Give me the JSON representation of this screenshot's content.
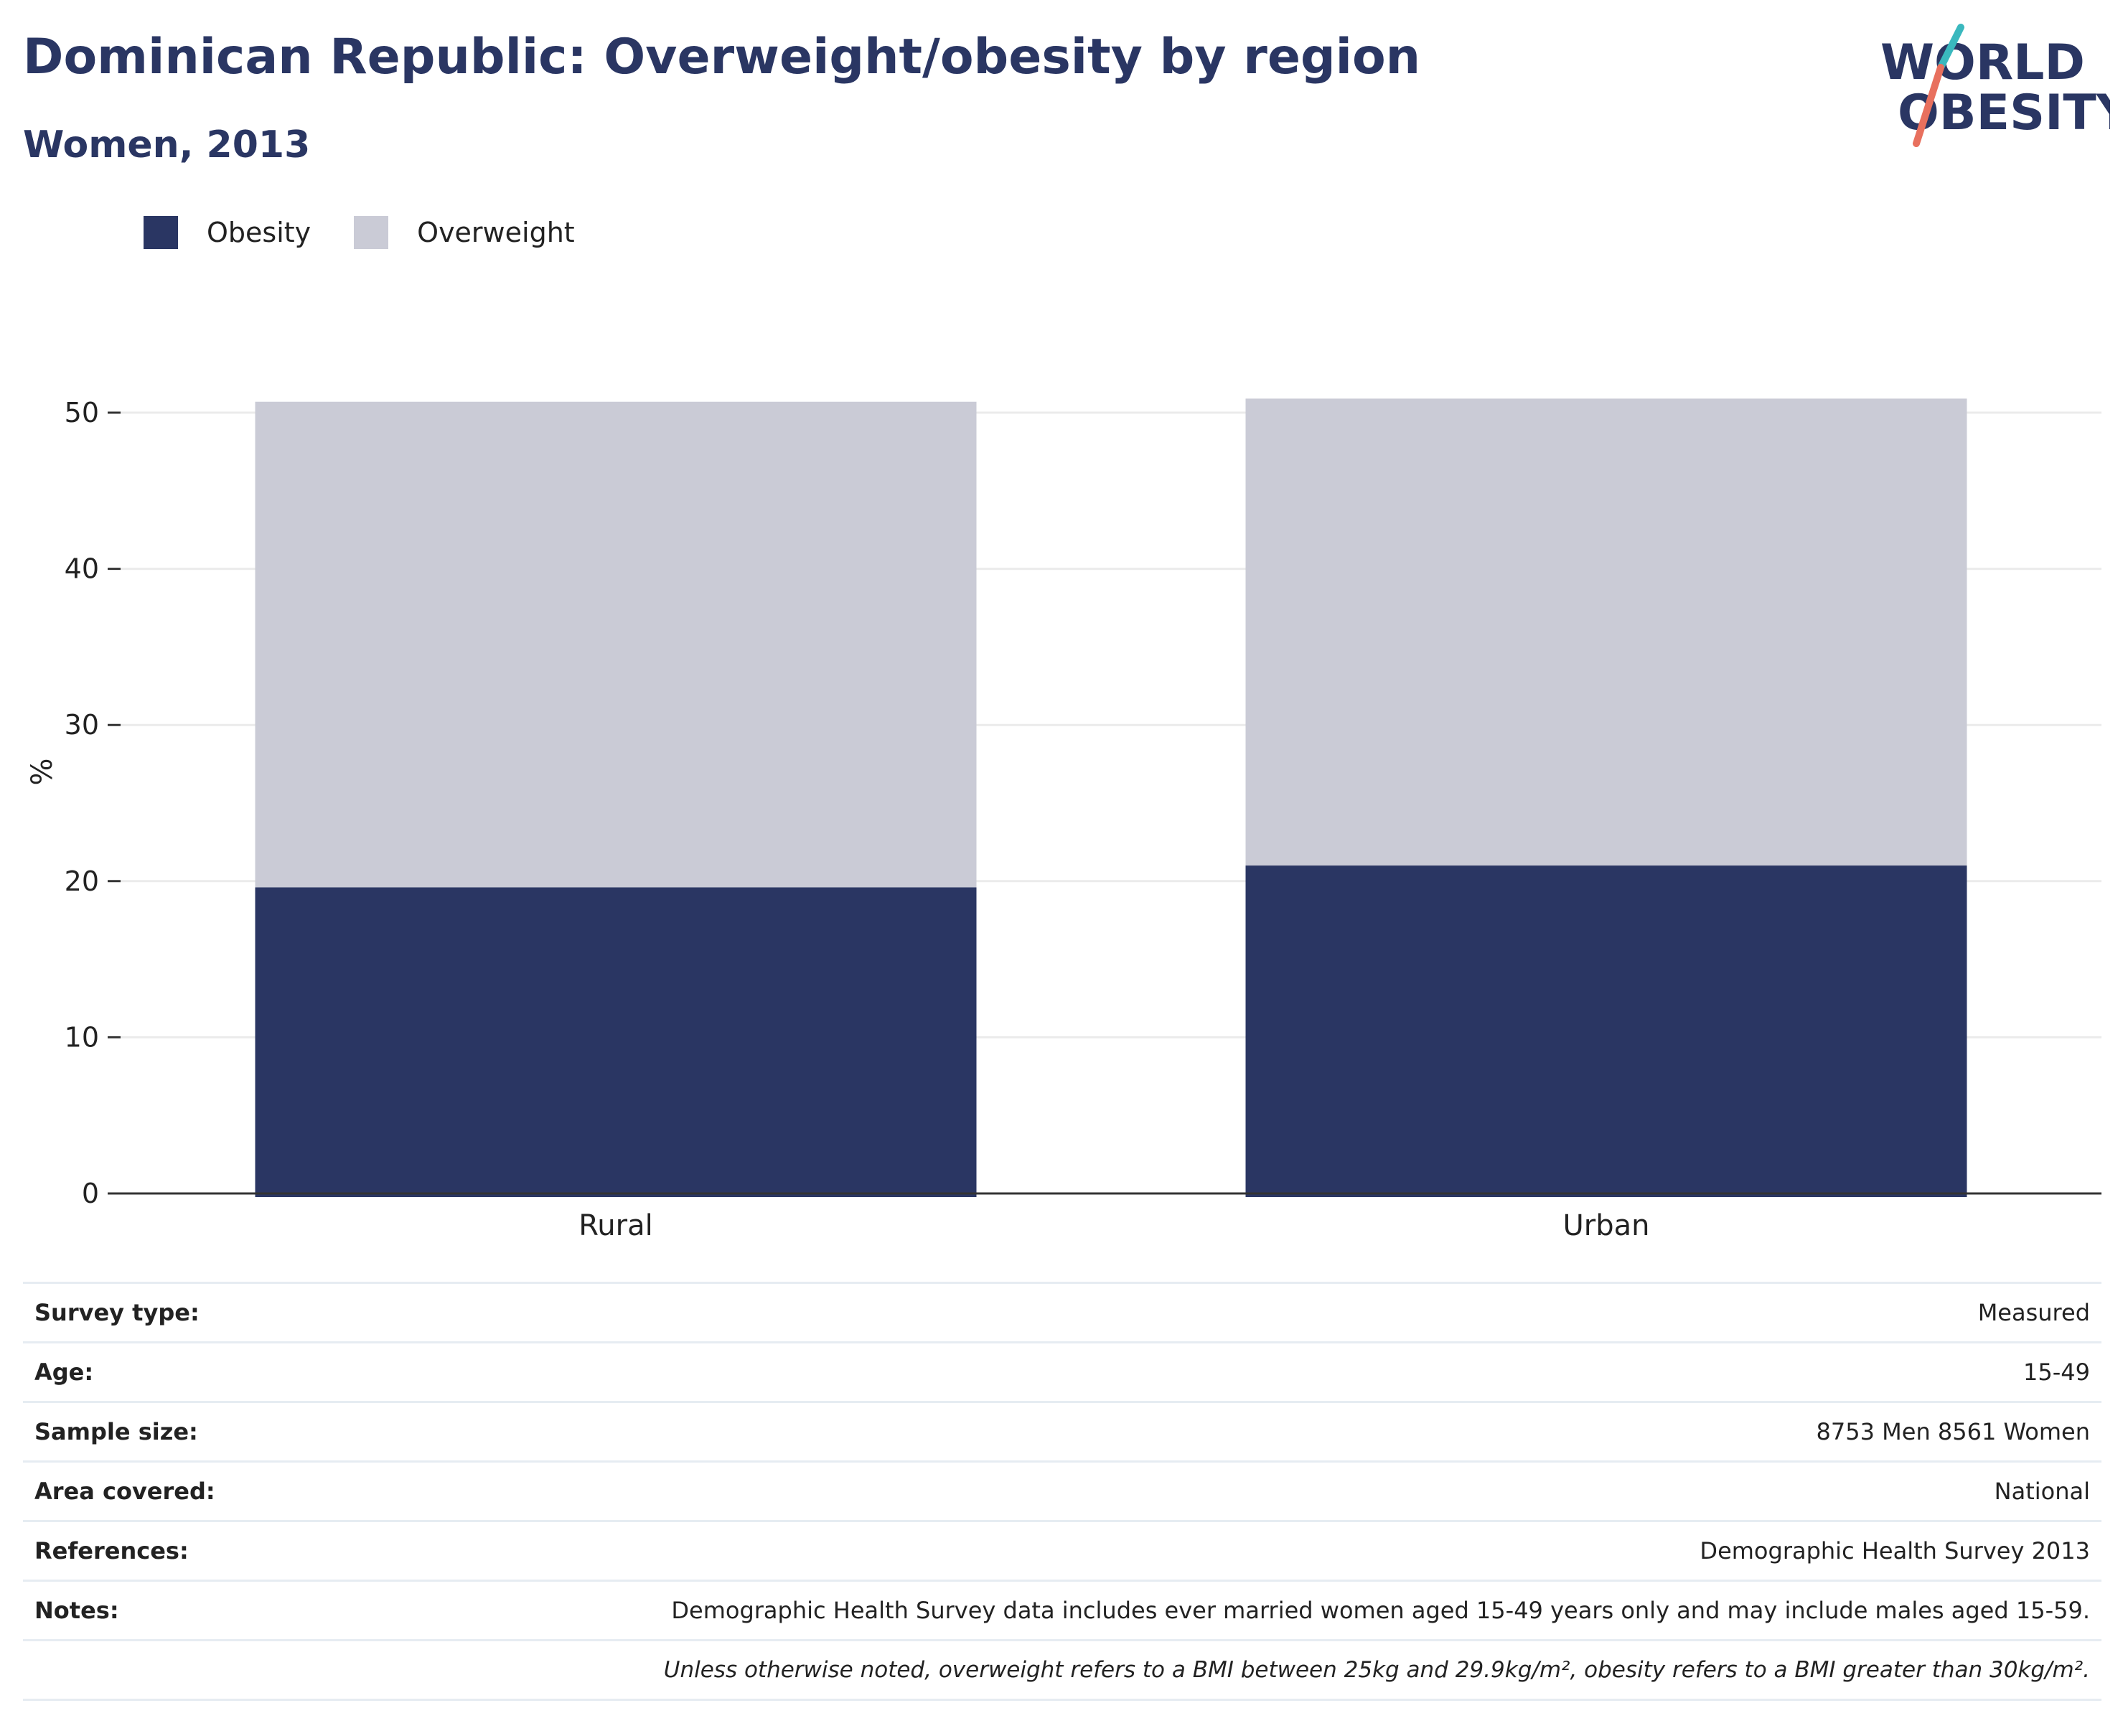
{
  "header": {
    "title": "Dominican Republic: Overweight/obesity by region",
    "subtitle": "Women, 2013"
  },
  "logo": {
    "line1": "WORLD",
    "line2": "OBESITY"
  },
  "colors": {
    "obesity": "#2a3663",
    "overweight": "#cacbd6",
    "title": "#2a3663",
    "logo_slash_red": "#e8705e",
    "logo_slash_teal": "#3ab8be",
    "grid": "#ebebeb",
    "axis": "#333333"
  },
  "chart_data": {
    "type": "bar",
    "stacked": true,
    "categories": [
      "Rural",
      "Urban"
    ],
    "series": [
      {
        "name": "Obesity",
        "values": [
          19.6,
          21.0
        ]
      },
      {
        "name": "Overweight",
        "values": [
          31.1,
          29.9
        ]
      }
    ],
    "ylabel": "%",
    "ylim": [
      0,
      55
    ],
    "yticks": [
      0,
      10,
      20,
      30,
      40,
      50
    ],
    "grid": true,
    "legend_position": "top-left"
  },
  "info": {
    "rows": [
      {
        "label": "Survey type:",
        "value": "Measured"
      },
      {
        "label": "Age:",
        "value": "15-49"
      },
      {
        "label": "Sample size:",
        "value": "8753 Men 8561 Women"
      },
      {
        "label": "Area covered:",
        "value": "National"
      },
      {
        "label": "References:",
        "value": "Demographic Health Survey 2013"
      },
      {
        "label": "Notes:",
        "value": "Demographic Health Survey data includes ever married women aged 15-49 years only and may include males aged 15-59."
      }
    ],
    "footnote": "Unless otherwise noted, overweight refers to a BMI between 25kg and 29.9kg/m², obesity refers to a BMI greater than 30kg/m²."
  }
}
